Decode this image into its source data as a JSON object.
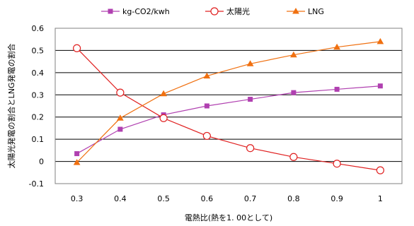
{
  "chart_data": {
    "type": "line",
    "x": [
      0.3,
      0.4,
      0.5,
      0.6,
      0.7,
      0.8,
      0.9,
      1.0
    ],
    "x_tick_labels": [
      "0.3",
      "0.4",
      "0.5",
      "0.6",
      "0.7",
      "0.8",
      "0.9",
      "1"
    ],
    "ylim": [
      -0.1,
      0.6
    ],
    "y_ticks": [
      -0.1,
      0,
      0.1,
      0.2,
      0.3,
      0.4,
      0.5,
      0.6
    ],
    "y_tick_labels": [
      "-0.1",
      "0",
      "0.1",
      "0.2",
      "0.3",
      "0.4",
      "0.5",
      "0.6"
    ],
    "xlabel": "電熱比(熱を1. 00として)",
    "ylabel": "太陽光発電の割合とLNG発電の割合",
    "grid": "horizontal",
    "legend_position": "top",
    "series": [
      {
        "name": "kg-CO2/kwh",
        "color": "#b040b0",
        "marker": "square",
        "values": [
          0.035,
          0.145,
          0.21,
          0.25,
          0.28,
          0.31,
          0.325,
          0.34
        ]
      },
      {
        "name": "太陽光",
        "color": "#e02020",
        "marker": "circle-open",
        "values": [
          0.51,
          0.31,
          0.195,
          0.115,
          0.06,
          0.02,
          -0.01,
          -0.04
        ]
      },
      {
        "name": "LNG",
        "color": "#f07010",
        "marker": "triangle",
        "values": [
          -0.005,
          0.195,
          0.305,
          0.385,
          0.44,
          0.48,
          0.515,
          0.54
        ]
      }
    ]
  }
}
